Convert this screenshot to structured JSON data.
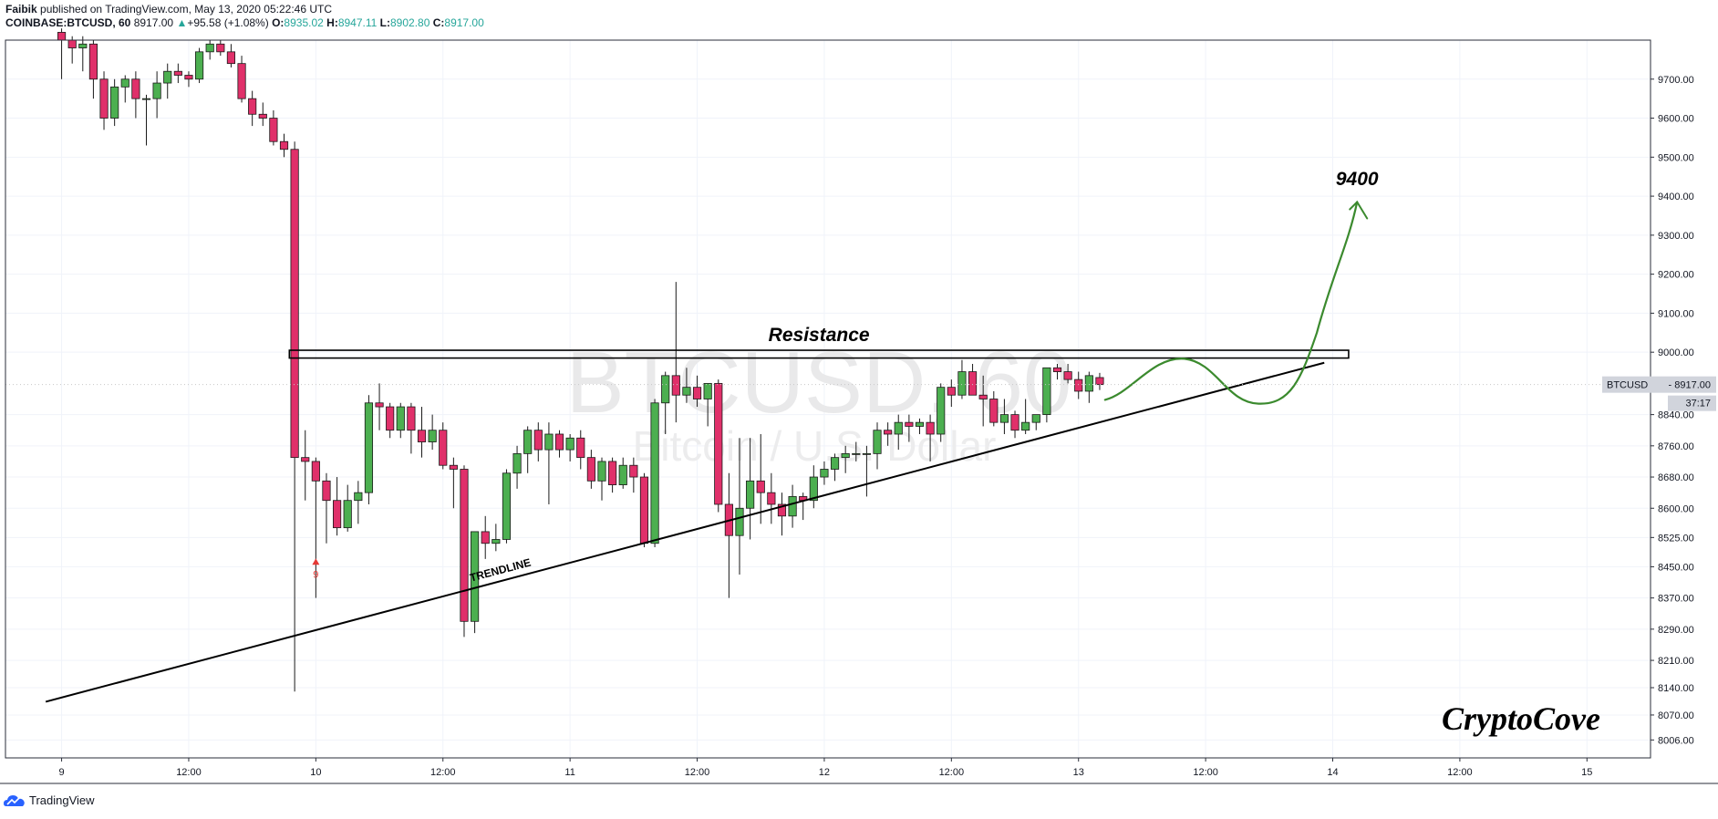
{
  "header": {
    "author": "Faibik",
    "published_text": "published on TradingView.com, May 13, 2020 05:22:46 UTC",
    "symbol": "COINBASE:BTCUSD, 60",
    "last": "8917.00",
    "change_arrow": "▲",
    "change": "+95.58 (+1.08%)",
    "o_label": "O:",
    "o": "8935.02",
    "h_label": "H:",
    "h": "8947.11",
    "l_label": "L:",
    "l": "8902.80",
    "c_label": "C:",
    "c": "8917.00"
  },
  "footer": {
    "brand": "TradingView"
  },
  "colors": {
    "up": "#4caf50",
    "down": "#e0306a",
    "grid": "#e0e3eb",
    "drawing_green": "#3b8a2e"
  },
  "chart_data": {
    "type": "candlestick",
    "title": "COINBASE:BTCUSD, 60",
    "watermark_symbol": "BTCUSD, 60",
    "watermark_name": "Bitcoin / U.S. Dollar",
    "ylim": [
      7960,
      9800
    ],
    "y_ticks": [
      9700,
      9600,
      9500,
      9400,
      9300,
      9200,
      9100,
      9000,
      8840,
      8760,
      8680,
      8600,
      8525,
      8450,
      8370,
      8290,
      8210,
      8140,
      8070,
      8006
    ],
    "y_tick_labels": [
      "9700.00",
      "9600.00",
      "9500.00",
      "9400.00",
      "9300.00",
      "9200.00",
      "9100.00",
      "9000.00",
      "8840.00",
      "8760.00",
      "8680.00",
      "8600.00",
      "8525.00",
      "8450.00",
      "8370.00",
      "8290.00",
      "8210.00",
      "8140.00",
      "8070.00",
      "8006.00"
    ],
    "x_ticks": [
      {
        "t": 0,
        "label": "9"
      },
      {
        "t": 12,
        "label": "12:00"
      },
      {
        "t": 24,
        "label": "10"
      },
      {
        "t": 36,
        "label": "12:00"
      },
      {
        "t": 48,
        "label": "11"
      },
      {
        "t": 60,
        "label": "12:00"
      },
      {
        "t": 72,
        "label": "12"
      },
      {
        "t": 84,
        "label": "12:00"
      },
      {
        "t": 96,
        "label": "13"
      },
      {
        "t": 108,
        "label": "12:00"
      },
      {
        "t": 120,
        "label": "14"
      },
      {
        "t": 132,
        "label": "12:00"
      },
      {
        "t": 144,
        "label": "15"
      }
    ],
    "x_range": [
      -5.3,
      150.0
    ],
    "candles": [
      [
        0,
        9820,
        9830,
        9700,
        9800
      ],
      [
        1,
        9800,
        9810,
        9740,
        9780
      ],
      [
        2,
        9780,
        9810,
        9720,
        9790
      ],
      [
        3,
        9790,
        9800,
        9650,
        9700
      ],
      [
        4,
        9700,
        9720,
        9570,
        9600
      ],
      [
        5,
        9600,
        9700,
        9580,
        9680
      ],
      [
        6,
        9680,
        9710,
        9640,
        9700
      ],
      [
        7,
        9700,
        9720,
        9600,
        9650
      ],
      [
        8,
        9650,
        9660,
        9530,
        9650
      ],
      [
        9,
        9650,
        9720,
        9600,
        9690
      ],
      [
        10,
        9690,
        9740,
        9650,
        9720
      ],
      [
        11,
        9720,
        9740,
        9690,
        9710
      ],
      [
        12,
        9710,
        9720,
        9680,
        9700
      ],
      [
        13,
        9700,
        9780,
        9690,
        9770
      ],
      [
        14,
        9770,
        9800,
        9750,
        9790
      ],
      [
        15,
        9790,
        9800,
        9760,
        9770
      ],
      [
        16,
        9770,
        9790,
        9730,
        9740
      ],
      [
        17,
        9740,
        9760,
        9640,
        9650
      ],
      [
        18,
        9650,
        9670,
        9580,
        9610
      ],
      [
        19,
        9610,
        9640,
        9580,
        9600
      ],
      [
        20,
        9600,
        9620,
        9530,
        9540
      ],
      [
        21,
        9540,
        9560,
        9500,
        9520
      ],
      [
        22,
        9520,
        9540,
        8130,
        8730
      ],
      [
        23,
        8730,
        8800,
        8620,
        8720
      ],
      [
        24,
        8720,
        8730,
        8370,
        8670
      ],
      [
        25,
        8670,
        8690,
        8510,
        8620
      ],
      [
        26,
        8620,
        8680,
        8530,
        8550
      ],
      [
        27,
        8550,
        8660,
        8540,
        8620
      ],
      [
        28,
        8620,
        8670,
        8560,
        8640
      ],
      [
        29,
        8640,
        8890,
        8610,
        8870
      ],
      [
        30,
        8870,
        8920,
        8800,
        8860
      ],
      [
        31,
        8860,
        8870,
        8780,
        8800
      ],
      [
        32,
        8800,
        8870,
        8780,
        8860
      ],
      [
        33,
        8860,
        8870,
        8740,
        8800
      ],
      [
        34,
        8800,
        8860,
        8730,
        8770
      ],
      [
        35,
        8770,
        8840,
        8750,
        8800
      ],
      [
        36,
        8800,
        8820,
        8700,
        8710
      ],
      [
        37,
        8710,
        8730,
        8600,
        8700
      ],
      [
        38,
        8700,
        8710,
        8270,
        8310
      ],
      [
        39,
        8310,
        8540,
        8280,
        8540
      ],
      [
        40,
        8540,
        8580,
        8470,
        8510
      ],
      [
        41,
        8510,
        8560,
        8490,
        8520
      ],
      [
        42,
        8520,
        8700,
        8510,
        8690
      ],
      [
        43,
        8690,
        8760,
        8650,
        8740
      ],
      [
        44,
        8740,
        8810,
        8690,
        8800
      ],
      [
        45,
        8800,
        8820,
        8720,
        8750
      ],
      [
        46,
        8750,
        8820,
        8610,
        8790
      ],
      [
        47,
        8790,
        8800,
        8730,
        8750
      ],
      [
        48,
        8750,
        8790,
        8720,
        8780
      ],
      [
        49,
        8780,
        8800,
        8700,
        8730
      ],
      [
        50,
        8730,
        8750,
        8650,
        8670
      ],
      [
        51,
        8670,
        8730,
        8620,
        8720
      ],
      [
        52,
        8720,
        8730,
        8640,
        8660
      ],
      [
        53,
        8660,
        8730,
        8650,
        8710
      ],
      [
        54,
        8710,
        8730,
        8640,
        8680
      ],
      [
        55,
        8680,
        8690,
        8500,
        8510
      ],
      [
        56,
        8510,
        8880,
        8500,
        8870
      ],
      [
        57,
        8870,
        8950,
        8790,
        8940
      ],
      [
        58,
        8940,
        9180,
        8820,
        8890
      ],
      [
        59,
        8890,
        8960,
        8870,
        8910
      ],
      [
        60,
        8910,
        8940,
        8860,
        8880
      ],
      [
        61,
        8880,
        8920,
        8810,
        8920
      ],
      [
        62,
        8920,
        8930,
        8590,
        8610
      ],
      [
        63,
        8610,
        8690,
        8370,
        8530
      ],
      [
        64,
        8530,
        8780,
        8430,
        8600
      ],
      [
        65,
        8600,
        8780,
        8520,
        8670
      ],
      [
        66,
        8670,
        8790,
        8560,
        8640
      ],
      [
        67,
        8640,
        8690,
        8560,
        8610
      ],
      [
        68,
        8610,
        8640,
        8530,
        8580
      ],
      [
        69,
        8580,
        8660,
        8550,
        8630
      ],
      [
        70,
        8630,
        8640,
        8570,
        8620
      ],
      [
        71,
        8620,
        8710,
        8600,
        8680
      ],
      [
        72,
        8680,
        8720,
        8660,
        8700
      ],
      [
        73,
        8700,
        8740,
        8670,
        8730
      ],
      [
        74,
        8730,
        8760,
        8690,
        8740
      ],
      [
        75,
        8740,
        8770,
        8720,
        8740
      ],
      [
        76,
        8740,
        8760,
        8630,
        8740
      ],
      [
        77,
        8740,
        8820,
        8700,
        8800
      ],
      [
        78,
        8800,
        8820,
        8760,
        8790
      ],
      [
        79,
        8790,
        8840,
        8750,
        8820
      ],
      [
        80,
        8820,
        8840,
        8770,
        8810
      ],
      [
        81,
        8810,
        8830,
        8790,
        8820
      ],
      [
        82,
        8820,
        8840,
        8720,
        8790
      ],
      [
        83,
        8790,
        8920,
        8770,
        8910
      ],
      [
        84,
        8910,
        8930,
        8860,
        8890
      ],
      [
        85,
        8890,
        8980,
        8880,
        8950
      ],
      [
        86,
        8950,
        8970,
        8890,
        8890
      ],
      [
        87,
        8890,
        8940,
        8810,
        8880
      ],
      [
        88,
        8880,
        8900,
        8810,
        8820
      ],
      [
        89,
        8820,
        8880,
        8790,
        8840
      ],
      [
        90,
        8840,
        8850,
        8780,
        8800
      ],
      [
        91,
        8800,
        8880,
        8790,
        8820
      ],
      [
        92,
        8820,
        8840,
        8800,
        8840
      ],
      [
        93,
        8840,
        8960,
        8820,
        8960
      ],
      [
        94,
        8960,
        8970,
        8930,
        8950
      ],
      [
        95,
        8950,
        8970,
        8920,
        8930
      ],
      [
        96,
        8930,
        8950,
        8880,
        8900
      ],
      [
        97,
        8900,
        8950,
        8870,
        8940
      ],
      [
        98,
        8935,
        8947,
        8903,
        8917
      ]
    ],
    "annotations": {
      "resistance": {
        "label": "Resistance",
        "t_start": 21.5,
        "t_end": 121.5,
        "y_low": 8985,
        "y_high": 9005
      },
      "trendline": {
        "label": "TRENDLINE",
        "t1": -1.5,
        "y1": 8104,
        "t2": 119.2,
        "y2": 8973
      },
      "target": {
        "label": "9400"
      },
      "td_signal": {
        "label": "9",
        "t": 24,
        "y": 8455
      },
      "brand": "CryptoCove"
    },
    "last_price_label": "BTCUSD",
    "last_price": "8917.00",
    "countdown": "37:17"
  }
}
